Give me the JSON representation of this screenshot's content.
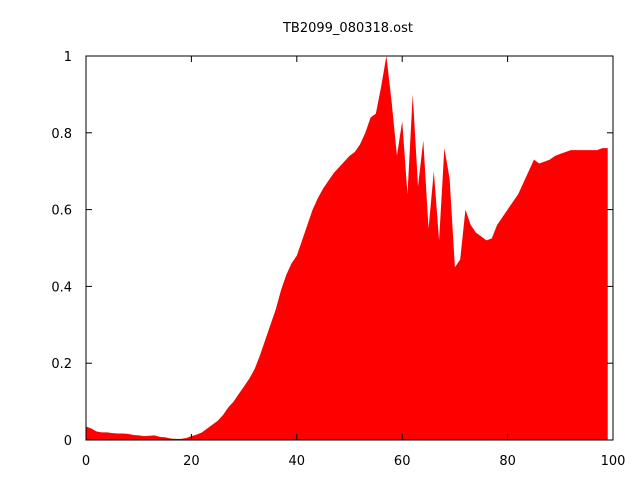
{
  "chart_data": {
    "type": "area",
    "title": "TB2099_080318.ost",
    "xlabel": "",
    "ylabel": "",
    "xlim": [
      0,
      100
    ],
    "ylim": [
      0,
      1
    ],
    "xticks": [
      0,
      20,
      40,
      60,
      80,
      100
    ],
    "yticks": [
      0,
      0.2,
      0.4,
      0.6,
      0.8,
      1
    ],
    "ytick_labels": [
      "0",
      "0.2",
      "0.4",
      "0.6",
      "0.8",
      "1"
    ],
    "xtick_labels": [
      "0",
      "20",
      "40",
      "60",
      "80",
      "100"
    ],
    "grid": false,
    "legend": "none",
    "fill_color": "#ff0000",
    "series": [
      {
        "x": [
          0,
          1,
          2,
          3,
          4,
          5,
          6,
          7,
          8,
          9,
          10,
          11,
          12,
          13,
          14,
          15,
          16,
          17,
          18,
          19,
          20,
          21,
          22,
          23,
          24,
          25,
          26,
          27,
          28,
          29,
          30,
          31,
          32,
          33,
          34,
          35,
          36,
          37,
          38,
          39,
          40,
          41,
          42,
          43,
          44,
          45,
          46,
          47,
          48,
          49,
          50,
          51,
          52,
          53,
          54,
          55,
          56,
          57,
          58,
          59,
          60,
          61,
          62,
          63,
          64,
          65,
          66,
          67,
          68,
          69,
          70,
          71,
          72,
          73,
          74,
          75,
          76,
          77,
          78,
          79,
          80,
          81,
          82,
          83,
          84,
          85,
          86,
          87,
          88,
          89,
          90,
          91,
          92,
          93,
          94,
          95,
          96,
          97,
          98,
          99
        ],
        "values": [
          0.035,
          0.03,
          0.022,
          0.02,
          0.02,
          0.018,
          0.017,
          0.017,
          0.016,
          0.013,
          0.012,
          0.01,
          0.011,
          0.012,
          0.008,
          0.007,
          0.004,
          0.003,
          0.003,
          0.005,
          0.01,
          0.014,
          0.02,
          0.03,
          0.04,
          0.05,
          0.065,
          0.085,
          0.1,
          0.12,
          0.14,
          0.16,
          0.185,
          0.22,
          0.26,
          0.3,
          0.34,
          0.39,
          0.43,
          0.46,
          0.48,
          0.52,
          0.56,
          0.6,
          0.63,
          0.655,
          0.675,
          0.695,
          0.71,
          0.725,
          0.74,
          0.75,
          0.77,
          0.8,
          0.84,
          0.85,
          0.92,
          1.0,
          0.88,
          0.74,
          0.83,
          0.64,
          0.9,
          0.66,
          0.78,
          0.55,
          0.7,
          0.52,
          0.76,
          0.68,
          0.45,
          0.47,
          0.6,
          0.56,
          0.54,
          0.53,
          0.52,
          0.525,
          0.56,
          0.58,
          0.6,
          0.62,
          0.64,
          0.67,
          0.7,
          0.73,
          0.72,
          0.725,
          0.73,
          0.74,
          0.745,
          0.75,
          0.755,
          0.755,
          0.755,
          0.755,
          0.755,
          0.755,
          0.76,
          0.76
        ]
      }
    ]
  }
}
